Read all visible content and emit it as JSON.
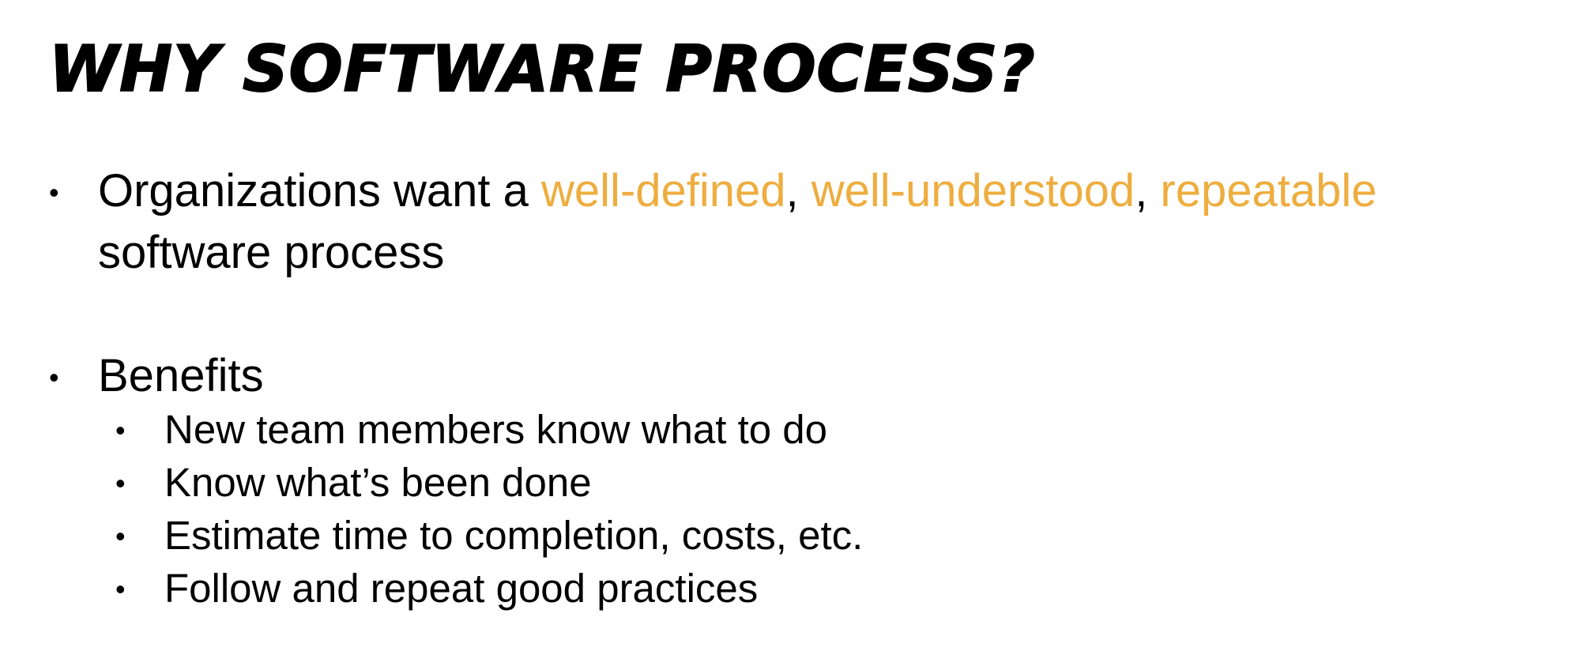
{
  "slide": {
    "title": "WHY SOFTWARE PROCESS?",
    "bullets": [
      {
        "intro": "Organizations want a ",
        "term1": "well-defined",
        "sep1": ", ",
        "term2": "well-understood",
        "sep2": ", ",
        "term3": "repeatable",
        "line2": "software process"
      },
      {
        "label": "Benefits",
        "sub_bullets": [
          "New team members know what to do",
          "Know what’s been done",
          "Estimate time to completion, costs, etc.",
          "Follow and repeat good practices"
        ]
      }
    ],
    "bullet_symbol": "•"
  },
  "colors": {
    "accent": "#EEAD3F",
    "text": "#000000",
    "background": "#FFFFFF"
  }
}
